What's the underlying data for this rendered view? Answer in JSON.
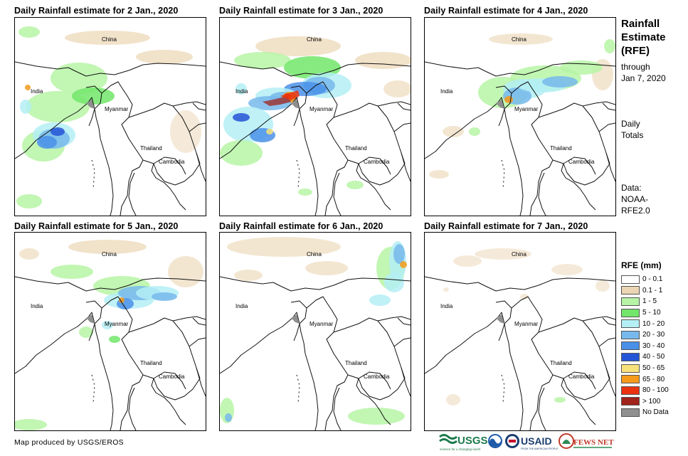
{
  "panels": [
    {
      "title": "Daily Rainfall estimate for 2 Jan., 2020"
    },
    {
      "title": "Daily Rainfall estimate for 3 Jan., 2020"
    },
    {
      "title": "Daily Rainfall estimate for 4 Jan., 2020"
    },
    {
      "title": "Daily Rainfall estimate for 5 Jan., 2020"
    },
    {
      "title": "Daily Rainfall estimate for 6 Jan., 2020"
    },
    {
      "title": "Daily Rainfall estimate for 7 Jan., 2020"
    }
  ],
  "map_labels": {
    "china": "China",
    "india": "India",
    "myanmar": "Myanmar",
    "thailand": "Thailand",
    "cambodia": "Cambodia"
  },
  "sidebar": {
    "title_line1": "Rainfall",
    "title_line2": "Estimate",
    "title_line3": "(RFE)",
    "through": "through",
    "date": "Jan 7, 2020",
    "daily": "Daily",
    "totals": "Totals",
    "data_label": "Data:",
    "data_line1": "NOAA-",
    "data_line2": "RFE2.0"
  },
  "legend": {
    "title": "RFE (mm)",
    "items": [
      {
        "label": "0 - 0.1",
        "color": "#ffffff"
      },
      {
        "label": "0.1 - 1",
        "color": "#ebd5b3"
      },
      {
        "label": "1 - 5",
        "color": "#b7f4a6"
      },
      {
        "label": "5 - 10",
        "color": "#72e66a"
      },
      {
        "label": "10 - 20",
        "color": "#b4eff5"
      },
      {
        "label": "20 - 30",
        "color": "#77b9ec"
      },
      {
        "label": "30 - 40",
        "color": "#4a90e8"
      },
      {
        "label": "40 - 50",
        "color": "#2455d6"
      },
      {
        "label": "50 - 65",
        "color": "#f8e27c"
      },
      {
        "label": "65 - 80",
        "color": "#f59a1b"
      },
      {
        "label": "80 - 100",
        "color": "#e9340f"
      },
      {
        "label": "> 100",
        "color": "#a0231c"
      },
      {
        "label": "No Data",
        "color": "#8f8f8f"
      }
    ]
  },
  "credit": "Map produced by USGS/EROS",
  "logos": {
    "usgs": "USGS",
    "usgs_tag": "science for a changing world",
    "usaid": "USAID",
    "usaid_tag": "FROM THE AMERICAN PEOPLE",
    "fewsnet": "FEWS NET"
  }
}
